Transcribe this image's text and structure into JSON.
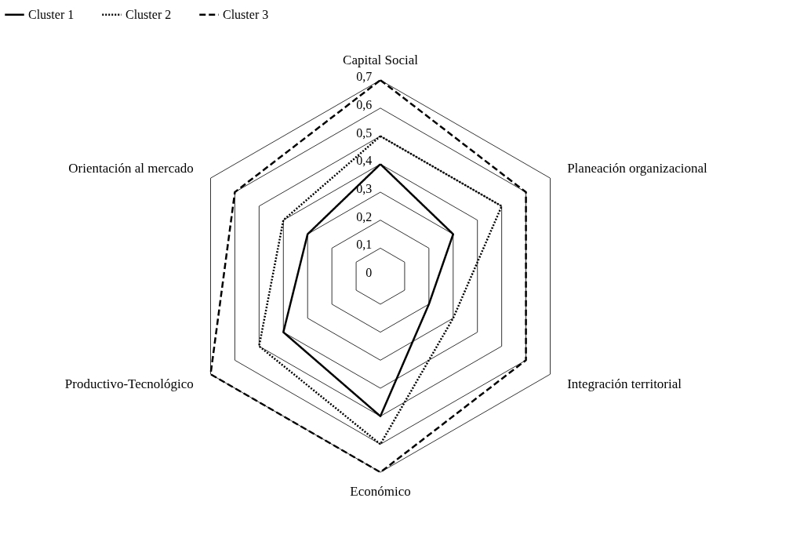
{
  "chart_data": {
    "type": "radar",
    "categories": [
      "Capital Social",
      "Planeación organizacional",
      "Integración territorial",
      "Económico",
      "Productivo-Tecnológico",
      "Orientación al mercado"
    ],
    "series": [
      {
        "name": "Cluster 1",
        "color": "#000000",
        "line_style": "solid",
        "values": [
          0.4,
          0.3,
          0.2,
          0.5,
          0.4,
          0.3
        ]
      },
      {
        "name": "Cluster 2",
        "color": "#000000",
        "line_style": "dotted",
        "values": [
          0.5,
          0.5,
          0.3,
          0.6,
          0.5,
          0.4
        ]
      },
      {
        "name": "Cluster 3",
        "color": "#000000",
        "line_style": "dashed",
        "values": [
          0.7,
          0.6,
          0.6,
          0.7,
          0.7,
          0.6
        ]
      }
    ],
    "ylim": [
      0,
      0.7
    ],
    "yticks": [
      {
        "value": 0,
        "label": "0"
      },
      {
        "value": 0.1,
        "label": "0,1"
      },
      {
        "value": 0.2,
        "label": "0,2"
      },
      {
        "value": 0.3,
        "label": "0,3"
      },
      {
        "value": 0.4,
        "label": "0,4"
      },
      {
        "value": 0.5,
        "label": "0,5"
      },
      {
        "value": 0.6,
        "label": "0,6"
      },
      {
        "value": 0.7,
        "label": "0,7"
      }
    ],
    "grid": true,
    "legend": "top"
  }
}
